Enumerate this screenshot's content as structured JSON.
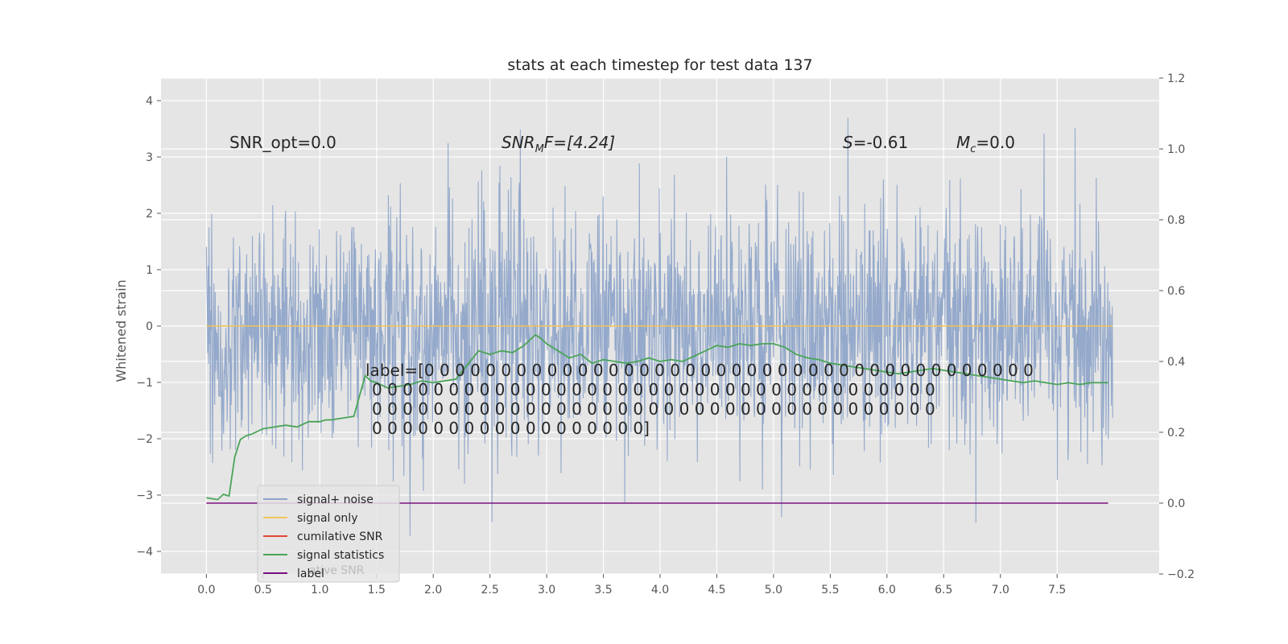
{
  "chart_data": {
    "type": "line",
    "title": "stats at each timestep for test data 137",
    "ylabel": "Whitened strain",
    "xlim": [
      -0.4,
      8.4
    ],
    "ylim": [
      -4.4,
      4.4
    ],
    "ylim_right": [
      -0.2,
      1.2
    ],
    "x_ticks": [
      "0.0",
      "0.5",
      "1.0",
      "1.5",
      "2.0",
      "2.5",
      "3.0",
      "3.5",
      "4.0",
      "4.5",
      "5.0",
      "5.5",
      "6.0",
      "6.5",
      "7.0",
      "7.5"
    ],
    "y_ticks_left": [
      "−4",
      "−3",
      "−2",
      "−1",
      "0",
      "1",
      "2",
      "3",
      "4"
    ],
    "y_ticks_right": [
      "−0.2",
      "0.0",
      "0.2",
      "0.4",
      "0.6",
      "0.8",
      "1.0",
      "1.2"
    ],
    "grid": true,
    "legend_position": "lower-left",
    "annotations": {
      "snr_opt": "SNR_opt=0.0",
      "snr_mf_main": "SNR",
      "snr_mf_sub": "M",
      "snr_mf_rest": "F=[4.24]",
      "s_italic": "S",
      "s_rest": "=-0.61",
      "mc_main": "M",
      "mc_sub": "c",
      "mc_rest": "=0.0",
      "label_lines": [
        "label=[0 0 0 0 0 0 0 0 0 0 0 0 0 0 0 0 0 0 0 0 0 0 0 0 0 0 0 0 0 0 0 0 0 0 0 0 0 0 0 0",
        "0 0 0 0 0 0 0 0 0 0 0 0 0 0 0 0 0 0 0 0 0 0 0 0 0 0 0 0 0 0 0 0 0 0 0 0 0",
        "0 0 0 0 0 0 0 0 0 0 0 0 0 0 0 0 0 0 0 0 0 0 0 0 0 0 0 0 0 0 0 0 0 0 0 0 0",
        "0 0 0 0 0 0 0 0 0 0 0 0 0 0 0 0 0 0]"
      ]
    },
    "legend": [
      {
        "label": "signal+ noise",
        "color": "#8fa5c9"
      },
      {
        "label": "signal only",
        "color": "#f2c45a"
      },
      {
        "label": "cumilative SNR",
        "color": "#e24a33"
      },
      {
        "label": "signal statistics",
        "color": "#4aa457"
      },
      {
        "label": "label",
        "color": "#7b0f7f"
      }
    ],
    "legend_ghost_text": "ative SNR",
    "series": [
      {
        "name": "signal+ noise",
        "axis": "left",
        "color": "#8fa5c9",
        "x_range": [
          0.0,
          7.99
        ],
        "envelope_max_approx": 4.0,
        "envelope_min_approx": -4.0
      },
      {
        "name": "signal only",
        "axis": "left",
        "color": "#f2c45a",
        "x": [
          0.0,
          7.99
        ],
        "y": [
          0.0,
          0.0
        ]
      },
      {
        "name": "signal statistics",
        "axis": "right",
        "color": "#4aa457",
        "x": [
          0.0,
          0.1,
          0.15,
          0.2,
          0.25,
          0.3,
          0.35,
          0.4,
          0.5,
          0.6,
          0.7,
          0.8,
          0.9,
          1.0,
          1.05,
          1.1,
          1.2,
          1.3,
          1.4,
          1.45,
          1.5,
          1.6,
          1.7,
          1.8,
          1.9,
          2.0,
          2.1,
          2.2,
          2.3,
          2.4,
          2.5,
          2.6,
          2.7,
          2.8,
          2.9,
          2.95,
          3.0,
          3.1,
          3.2,
          3.3,
          3.4,
          3.5,
          3.6,
          3.7,
          3.8,
          3.9,
          4.0,
          4.1,
          4.2,
          4.3,
          4.4,
          4.5,
          4.6,
          4.7,
          4.8,
          4.9,
          5.0,
          5.1,
          5.2,
          5.3,
          5.4,
          5.5,
          5.6,
          5.7,
          5.8,
          5.9,
          6.0,
          6.1,
          6.2,
          6.3,
          6.4,
          6.5,
          6.6,
          6.7,
          6.8,
          6.9,
          7.0,
          7.1,
          7.2,
          7.3,
          7.4,
          7.5,
          7.6,
          7.7,
          7.8,
          7.9,
          7.95
        ],
        "y": [
          0.015,
          0.01,
          0.025,
          0.02,
          0.13,
          0.18,
          0.19,
          0.195,
          0.21,
          0.215,
          0.22,
          0.215,
          0.23,
          0.23,
          0.235,
          0.235,
          0.24,
          0.245,
          0.36,
          0.345,
          0.34,
          0.325,
          0.33,
          0.335,
          0.345,
          0.34,
          0.345,
          0.35,
          0.39,
          0.43,
          0.42,
          0.43,
          0.425,
          0.445,
          0.475,
          0.465,
          0.45,
          0.43,
          0.41,
          0.42,
          0.395,
          0.405,
          0.4,
          0.395,
          0.4,
          0.41,
          0.4,
          0.405,
          0.4,
          0.415,
          0.43,
          0.445,
          0.44,
          0.45,
          0.445,
          0.45,
          0.45,
          0.44,
          0.42,
          0.41,
          0.405,
          0.395,
          0.39,
          0.385,
          0.38,
          0.375,
          0.37,
          0.365,
          0.37,
          0.375,
          0.38,
          0.375,
          0.37,
          0.365,
          0.36,
          0.355,
          0.35,
          0.345,
          0.34,
          0.345,
          0.34,
          0.335,
          0.34,
          0.335,
          0.34,
          0.34,
          0.34
        ]
      },
      {
        "name": "label",
        "axis": "right",
        "color": "#7b0f7f",
        "x": [
          0.0,
          7.95
        ],
        "y": [
          0.0,
          0.0
        ]
      }
    ]
  }
}
